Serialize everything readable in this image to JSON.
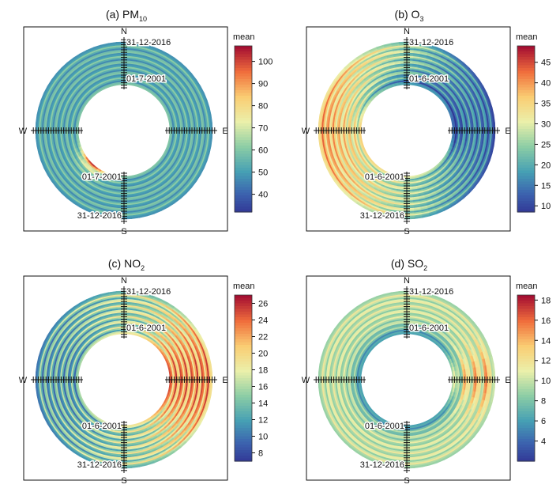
{
  "figure": {
    "legend_title": "mean"
  },
  "chart_data": [
    {
      "type": "polar-heatmap",
      "panel": "a",
      "title_prefix": "(a) PM",
      "title_sub": "10",
      "directions": [
        "N",
        "E",
        "S",
        "W"
      ],
      "radial_axis": {
        "inner_date": "01-7-2001",
        "outer_date": "31-12-2016"
      },
      "colorbar": {
        "label": "mean",
        "min": 32,
        "max": 107,
        "ticks": [
          40,
          50,
          60,
          70,
          80,
          90,
          100
        ]
      },
      "colors": {
        "low": "#3953a4",
        "high": "#b2182b"
      }
    },
    {
      "type": "polar-heatmap",
      "panel": "b",
      "title_prefix": "(b) O",
      "title_sub": "3",
      "directions": [
        "N",
        "E",
        "S",
        "W"
      ],
      "radial_axis": {
        "inner_date": "01-6-2001",
        "outer_date": "31-12-2016"
      },
      "colorbar": {
        "label": "mean",
        "min": 8.5,
        "max": 49,
        "ticks": [
          10,
          15,
          20,
          25,
          30,
          35,
          40,
          45
        ]
      },
      "colors": {
        "low": "#3953a4",
        "high": "#b2182b"
      }
    },
    {
      "type": "polar-heatmap",
      "panel": "c",
      "title_prefix": "(c) NO",
      "title_sub": "2",
      "directions": [
        "N",
        "E",
        "S",
        "W"
      ],
      "radial_axis": {
        "inner_date": "01-6-2001",
        "outer_date": "31-12-2016"
      },
      "colorbar": {
        "label": "mean",
        "min": 7,
        "max": 27,
        "ticks": [
          8,
          10,
          12,
          14,
          16,
          18,
          20,
          22,
          24,
          26
        ]
      },
      "colors": {
        "low": "#3953a4",
        "high": "#b2182b"
      }
    },
    {
      "type": "polar-heatmap",
      "panel": "d",
      "title_prefix": "(d) SO",
      "title_sub": "2",
      "directions": [
        "N",
        "E",
        "S",
        "W"
      ],
      "radial_axis": {
        "inner_date": "01-6-2001",
        "outer_date": "31-12-2016"
      },
      "colorbar": {
        "label": "mean",
        "min": 2,
        "max": 18.5,
        "ticks": [
          4,
          6,
          8,
          10,
          12,
          14,
          16,
          18
        ]
      },
      "colors": {
        "low": "#3953a4",
        "high": "#b2182b"
      }
    }
  ]
}
